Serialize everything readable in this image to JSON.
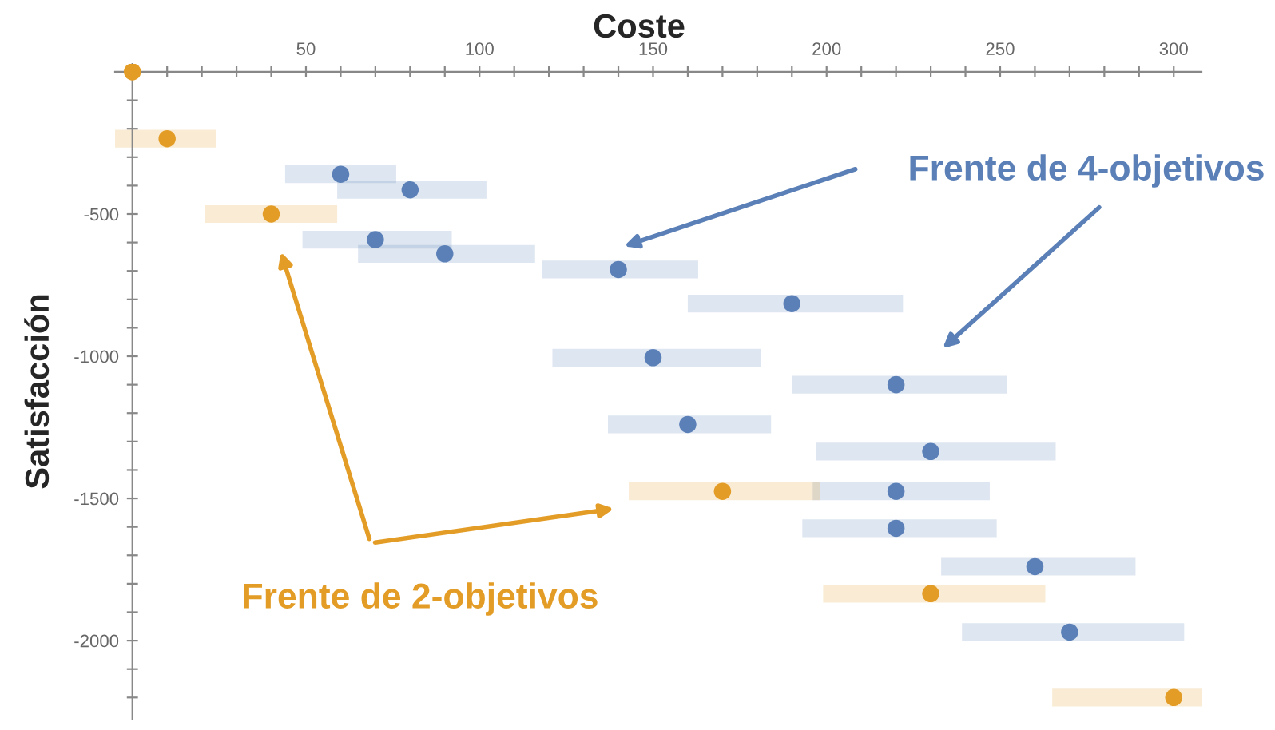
{
  "chart_data": {
    "type": "scatter",
    "xlabel": "Coste",
    "ylabel": "Satisfacción",
    "xlim": [
      -5,
      308
    ],
    "ylim": [
      -2275,
      28
    ],
    "xticks": [
      {
        "value": 10,
        "label": null
      },
      {
        "value": 20,
        "label": null
      },
      {
        "value": 30,
        "label": null
      },
      {
        "value": 40,
        "label": null
      },
      50,
      {
        "value": 60,
        "label": null
      },
      {
        "value": 70,
        "label": null
      },
      {
        "value": 80,
        "label": null
      },
      {
        "value": 90,
        "label": null
      },
      100,
      {
        "value": 110,
        "label": null
      },
      {
        "value": 120,
        "label": null
      },
      {
        "value": 130,
        "label": null
      },
      {
        "value": 140,
        "label": null
      },
      150,
      {
        "value": 160,
        "label": null
      },
      {
        "value": 170,
        "label": null
      },
      {
        "value": 180,
        "label": null
      },
      {
        "value": 190,
        "label": null
      },
      200,
      {
        "value": 210,
        "label": null
      },
      {
        "value": 220,
        "label": null
      },
      {
        "value": 230,
        "label": null
      },
      {
        "value": 240,
        "label": null
      },
      250,
      {
        "value": 260,
        "label": null
      },
      {
        "value": 270,
        "label": null
      },
      {
        "value": 280,
        "label": null
      },
      {
        "value": 290,
        "label": null
      },
      300
    ],
    "yticks": [
      {
        "value": -100,
        "label": null
      },
      {
        "value": -200,
        "label": null
      },
      {
        "value": -300,
        "label": null
      },
      {
        "value": -400,
        "label": null
      },
      -500,
      {
        "value": -600,
        "label": null
      },
      {
        "value": -700,
        "label": null
      },
      {
        "value": -800,
        "label": null
      },
      {
        "value": -900,
        "label": null
      },
      -1000,
      {
        "value": -1100,
        "label": null
      },
      {
        "value": -1200,
        "label": null
      },
      {
        "value": -1300,
        "label": null
      },
      {
        "value": -1400,
        "label": null
      },
      -1500,
      {
        "value": -1600,
        "label": null
      },
      {
        "value": -1700,
        "label": null
      },
      {
        "value": -1800,
        "label": null
      },
      {
        "value": -1900,
        "label": null
      },
      -2000,
      {
        "value": -2100,
        "label": null
      },
      {
        "value": -2200,
        "label": null
      }
    ],
    "grid": false,
    "legend": false,
    "marker": "circle",
    "series": [
      {
        "name": "Frente de 4-objetivos",
        "color": "#5b80b8",
        "x": [
          60,
          80,
          70,
          90,
          140,
          190,
          150,
          220,
          160,
          230,
          220,
          220,
          260,
          270
        ],
        "values": [
          -360,
          -415,
          -590,
          -640,
          -695,
          -815,
          -1005,
          -1100,
          -1240,
          -1335,
          -1475,
          -1605,
          -1740,
          -1970
        ],
        "xerrors": [
          [
            44,
            76
          ],
          [
            59,
            102
          ],
          [
            49,
            92
          ],
          [
            65,
            116
          ],
          [
            118,
            163
          ],
          [
            160,
            222
          ],
          [
            121,
            181
          ],
          [
            190,
            252
          ],
          [
            137,
            184
          ],
          [
            197,
            266
          ],
          [
            196,
            247
          ],
          [
            193,
            249
          ],
          [
            233,
            289
          ],
          [
            239,
            303
          ]
        ]
      },
      {
        "name": "Frente de 2-objetivos",
        "color": "#e39c26",
        "x": [
          0,
          10,
          40,
          170,
          230,
          300
        ],
        "values": [
          0,
          -235,
          -500,
          -1475,
          -1835,
          -2200
        ],
        "xerrors": [
          null,
          [
            -5,
            24
          ],
          [
            21,
            59
          ],
          [
            143,
            198
          ],
          [
            199,
            263
          ],
          [
            265,
            308
          ]
        ]
      }
    ]
  }
}
